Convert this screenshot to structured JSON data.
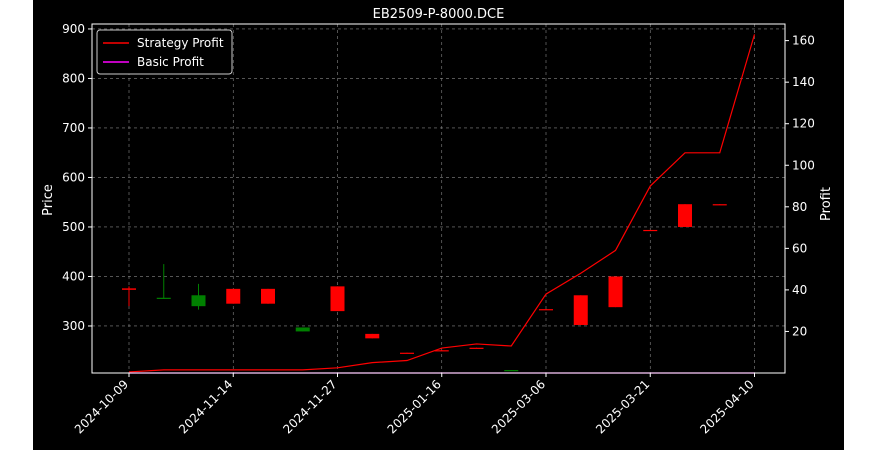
{
  "chart_data": {
    "type": "candlestick+line",
    "title": "EB2509-P-8000.DCE",
    "ylabel_left": "Price",
    "ylabel_right": "Profit",
    "grid": true,
    "legend_position": "top-left",
    "x_tick_labels": [
      "2024-10-09",
      "2024-11-14",
      "2024-11-27",
      "2025-01-16",
      "2025-03-06",
      "2025-03-21",
      "2025-04-10"
    ],
    "x_tick_indices": [
      0,
      3,
      6,
      9,
      12,
      15,
      18
    ],
    "ylim_left": [
      205,
      910
    ],
    "yticks_left": [
      300,
      400,
      500,
      600,
      700,
      800,
      900
    ],
    "ylim_right": [
      0,
      168
    ],
    "yticks_right": [
      20,
      40,
      60,
      80,
      100,
      120,
      140,
      160
    ],
    "candles": [
      {
        "i": 0,
        "open": 373,
        "close": 376,
        "high": 380,
        "low": 340,
        "color": "red"
      },
      {
        "i": 1,
        "open": 357,
        "close": 357,
        "high": 425,
        "low": 355,
        "color": "green"
      },
      {
        "i": 2,
        "open": 362,
        "close": 340,
        "high": 385,
        "low": 333,
        "color": "green"
      },
      {
        "i": 3,
        "open": 345,
        "close": 375,
        "high": 375,
        "low": 345,
        "color": "red"
      },
      {
        "i": 4,
        "open": 345,
        "close": 375,
        "high": 375,
        "low": 345,
        "color": "red"
      },
      {
        "i": 5,
        "open": 297,
        "close": 289,
        "high": 297,
        "low": 289,
        "color": "green"
      },
      {
        "i": 6,
        "open": 330,
        "close": 380,
        "high": 380,
        "low": 330,
        "color": "red"
      },
      {
        "i": 7,
        "open": 275,
        "close": 284,
        "high": 284,
        "low": 275,
        "color": "red"
      },
      {
        "i": 8,
        "open": 245,
        "close": 246,
        "high": 246,
        "low": 245,
        "color": "red"
      },
      {
        "i": 9,
        "open": 250,
        "close": 251,
        "high": 251,
        "low": 250,
        "color": "red"
      },
      {
        "i": 10,
        "open": 255,
        "close": 256,
        "high": 256,
        "low": 255,
        "color": "red"
      },
      {
        "i": 11,
        "open": 211,
        "close": 209,
        "high": 211,
        "low": 209,
        "color": "green"
      },
      {
        "i": 12,
        "open": 333,
        "close": 334,
        "high": 334,
        "low": 333,
        "color": "red"
      },
      {
        "i": 13,
        "open": 302,
        "close": 362,
        "high": 362,
        "low": 302,
        "color": "red"
      },
      {
        "i": 14,
        "open": 338,
        "close": 400,
        "high": 400,
        "low": 338,
        "color": "red"
      },
      {
        "i": 15,
        "open": 493,
        "close": 494,
        "high": 494,
        "low": 493,
        "color": "red"
      },
      {
        "i": 16,
        "open": 500,
        "close": 546,
        "high": 546,
        "low": 500,
        "color": "red"
      },
      {
        "i": 17,
        "open": 545,
        "close": 546,
        "high": 546,
        "low": 545,
        "color": "red"
      }
    ],
    "series": [
      {
        "name": "Strategy Profit",
        "color": "#ff0000",
        "axis": "right",
        "x": [
          0,
          1,
          2,
          3,
          4,
          5,
          6,
          7,
          8,
          9,
          10,
          11,
          12,
          13,
          14,
          15,
          16,
          17,
          18
        ],
        "values": [
          0.5,
          1.5,
          1.5,
          1.5,
          1.5,
          1.5,
          2.5,
          5,
          6,
          12,
          14,
          13,
          38,
          48,
          59,
          90,
          106,
          106,
          163
        ]
      },
      {
        "name": "Basic Profit",
        "color": "#ff00ff",
        "axis": "right",
        "x": [
          0,
          18
        ],
        "values": [
          0,
          0
        ]
      }
    ]
  }
}
